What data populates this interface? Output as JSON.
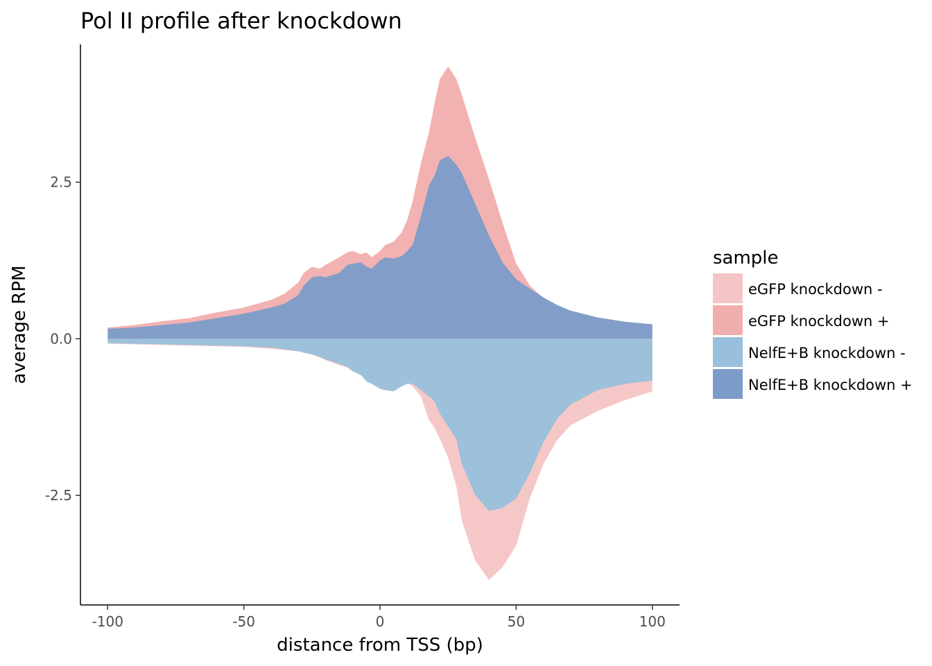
{
  "chart_data": {
    "type": "area",
    "title": "Pol II profile after knockdown",
    "xlabel": "distance from TSS (bp)",
    "ylabel": "average RPM",
    "xlim": [
      -110,
      110
    ],
    "ylim": [
      -4.25,
      4.7
    ],
    "xticks": [
      -100,
      -50,
      0,
      50,
      100
    ],
    "xtick_labels": [
      "-100",
      "-50",
      "0",
      "50",
      "100"
    ],
    "yticks": [
      -2.5,
      0,
      2.5
    ],
    "ytick_labels": [
      "-2.5",
      "0.0",
      "2.5"
    ],
    "grid": false,
    "legend_position": "right",
    "legend_title": "sample",
    "x": [
      -100,
      -90,
      -80,
      -70,
      -60,
      -50,
      -40,
      -35,
      -30,
      -28,
      -25,
      -22,
      -20,
      -15,
      -12,
      -10,
      -7,
      -5,
      -3,
      0,
      2,
      5,
      8,
      10,
      12,
      15,
      18,
      20,
      22,
      25,
      28,
      30,
      35,
      40,
      45,
      50,
      55,
      60,
      65,
      70,
      80,
      90,
      100
    ],
    "series": [
      {
        "name": "eGFP knockdown -",
        "color": "#f4c5c4",
        "values": [
          -0.08,
          -0.09,
          -0.1,
          -0.11,
          -0.12,
          -0.13,
          -0.16,
          -0.18,
          -0.2,
          -0.22,
          -0.25,
          -0.3,
          -0.34,
          -0.42,
          -0.46,
          -0.52,
          -0.56,
          -0.62,
          -0.7,
          -0.8,
          -0.82,
          -0.84,
          -0.74,
          -0.7,
          -0.76,
          -0.92,
          -1.3,
          -1.42,
          -1.6,
          -1.9,
          -2.35,
          -2.9,
          -3.55,
          -3.85,
          -3.65,
          -3.3,
          -2.55,
          -2.0,
          -1.62,
          -1.38,
          -1.15,
          -0.98,
          -0.84
        ]
      },
      {
        "name": "eGFP knockdown +",
        "color": "#f1aeae",
        "values": [
          0.18,
          0.22,
          0.28,
          0.33,
          0.42,
          0.5,
          0.62,
          0.72,
          0.9,
          1.05,
          1.15,
          1.12,
          1.18,
          1.3,
          1.38,
          1.4,
          1.35,
          1.38,
          1.3,
          1.4,
          1.5,
          1.55,
          1.7,
          1.9,
          2.2,
          2.8,
          3.3,
          3.75,
          4.15,
          4.35,
          4.15,
          3.9,
          3.2,
          2.55,
          1.85,
          1.2,
          0.85,
          0.65,
          0.52,
          0.42,
          0.33,
          0.27,
          0.23
        ]
      },
      {
        "name": "NelfE+B knockdown -",
        "color": "#98c0dc",
        "values": [
          -0.07,
          -0.08,
          -0.09,
          -0.1,
          -0.11,
          -0.12,
          -0.14,
          -0.17,
          -0.2,
          -0.22,
          -0.25,
          -0.29,
          -0.33,
          -0.4,
          -0.45,
          -0.52,
          -0.58,
          -0.68,
          -0.72,
          -0.8,
          -0.82,
          -0.84,
          -0.76,
          -0.72,
          -0.72,
          -0.82,
          -0.92,
          -1.0,
          -1.2,
          -1.4,
          -1.6,
          -2.0,
          -2.5,
          -2.75,
          -2.7,
          -2.55,
          -2.15,
          -1.65,
          -1.28,
          -1.05,
          -0.82,
          -0.72,
          -0.67
        ]
      },
      {
        "name": "NelfE+B knockdown +",
        "color": "#7b9cc8",
        "values": [
          0.16,
          0.18,
          0.22,
          0.26,
          0.33,
          0.4,
          0.5,
          0.56,
          0.7,
          0.85,
          0.98,
          1.0,
          0.98,
          1.05,
          1.18,
          1.2,
          1.22,
          1.15,
          1.12,
          1.25,
          1.3,
          1.28,
          1.32,
          1.4,
          1.5,
          1.95,
          2.45,
          2.6,
          2.85,
          2.92,
          2.78,
          2.65,
          2.15,
          1.65,
          1.22,
          0.95,
          0.8,
          0.66,
          0.54,
          0.45,
          0.34,
          0.27,
          0.23
        ]
      }
    ]
  }
}
